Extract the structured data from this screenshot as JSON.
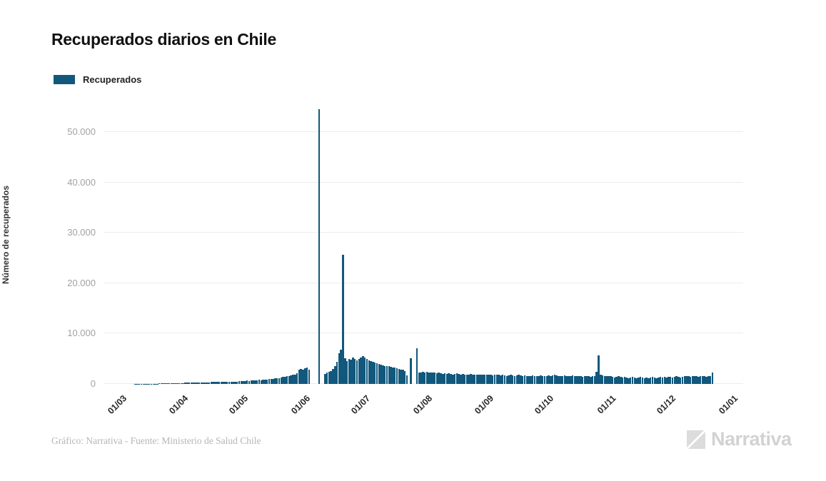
{
  "header": {
    "title": "Recuperados diarios en Chile"
  },
  "legend": {
    "items": [
      {
        "label": "Recuperados",
        "color": "#11587c"
      }
    ]
  },
  "chart_data": {
    "type": "bar",
    "title": "Recuperados diarios en Chile",
    "xlabel": "",
    "ylabel": "Número de recuperados",
    "ylim": [
      0,
      55000
    ],
    "grid": "horizontal-only",
    "bar_color": "#11587c",
    "legend_position": "top-left",
    "start_date": "01/03",
    "end_date": "22/12",
    "x_ticks": [
      {
        "label": "01/03",
        "day": 0
      },
      {
        "label": "01/04",
        "day": 31
      },
      {
        "label": "01/05",
        "day": 61
      },
      {
        "label": "01/06",
        "day": 92
      },
      {
        "label": "01/07",
        "day": 122
      },
      {
        "label": "01/08",
        "day": 153
      },
      {
        "label": "01/09",
        "day": 184
      },
      {
        "label": "01/10",
        "day": 214
      },
      {
        "label": "01/11",
        "day": 245
      },
      {
        "label": "01/12",
        "day": 275
      },
      {
        "label": "01/01",
        "day": 306
      }
    ],
    "y_ticks": [
      {
        "value": 0,
        "label": "0"
      },
      {
        "value": 10000,
        "label": "10.000"
      },
      {
        "value": 20000,
        "label": "20.000"
      },
      {
        "value": 30000,
        "label": "30.000"
      },
      {
        "value": 40000,
        "label": "40.000"
      },
      {
        "value": 50000,
        "label": "50.000"
      }
    ],
    "notable_points": [
      {
        "date": "08/06",
        "value": 54480
      },
      {
        "date": "20/06",
        "value": 25600
      },
      {
        "date": "24/07",
        "value": 5100
      },
      {
        "date": "27/07",
        "value": 7100
      },
      {
        "date": "26/10",
        "value": 5600
      }
    ],
    "series": [
      {
        "name": "Recuperados",
        "values": [
          0,
          0,
          0,
          0,
          5,
          8,
          10,
          12,
          15,
          18,
          20,
          25,
          30,
          35,
          40,
          45,
          50,
          60,
          70,
          80,
          90,
          100,
          110,
          120,
          130,
          140,
          150,
          160,
          170,
          180,
          190,
          210,
          230,
          250,
          240,
          260,
          280,
          270,
          290,
          310,
          300,
          320,
          340,
          330,
          350,
          370,
          360,
          380,
          400,
          390,
          410,
          430,
          420,
          440,
          460,
          450,
          470,
          490,
          480,
          500,
          520,
          560,
          600,
          640,
          620,
          680,
          720,
          700,
          760,
          800,
          780,
          840,
          880,
          900,
          950,
          1000,
          1050,
          1100,
          1200,
          1150,
          1300,
          1400,
          1350,
          1500,
          1600,
          1700,
          1800,
          1900,
          2100,
          2800,
          3000,
          2900,
          3100,
          3200,
          2900,
          0,
          0,
          0,
          0,
          54480,
          0,
          0,
          2000,
          2200,
          2400,
          2600,
          3000,
          3500,
          4400,
          6100,
          6800,
          25600,
          5100,
          4600,
          5000,
          4800,
          5300,
          4900,
          4700,
          5000,
          5200,
          5500,
          5200,
          4900,
          4700,
          4500,
          4400,
          4200,
          4100,
          3900,
          3800,
          3700,
          3600,
          3500,
          3500,
          3400,
          3300,
          3200,
          3100,
          3000,
          2900,
          2800,
          2600,
          1700,
          0,
          5100,
          0,
          0,
          7100,
          2300,
          2200,
          2400,
          2300,
          2400,
          2300,
          2200,
          2300,
          2200,
          2100,
          2200,
          2100,
          2000,
          2100,
          2000,
          2100,
          2000,
          1900,
          2000,
          2100,
          2000,
          1900,
          2000,
          1900,
          1800,
          1900,
          2000,
          1900,
          1800,
          1900,
          1800,
          1900,
          1800,
          1900,
          1800,
          1900,
          1800,
          1700,
          1800,
          1900,
          1800,
          1700,
          1800,
          1700,
          1600,
          1700,
          1800,
          1700,
          1600,
          1700,
          1800,
          1700,
          1600,
          1700,
          1600,
          1500,
          1600,
          1700,
          1600,
          1500,
          1600,
          1700,
          1600,
          1500,
          1600,
          1700,
          1600,
          1700,
          1800,
          1700,
          1600,
          1500,
          1600,
          1700,
          1600,
          1500,
          1600,
          1700,
          1600,
          1500,
          1600,
          1500,
          1400,
          1500,
          1600,
          1500,
          1400,
          1500,
          1600,
          2400,
          5600,
          1800,
          1700,
          1600,
          1500,
          1600,
          1500,
          1400,
          1300,
          1400,
          1500,
          1400,
          1300,
          1400,
          1300,
          1200,
          1300,
          1400,
          1300,
          1200,
          1300,
          1400,
          1300,
          1200,
          1300,
          1200,
          1300,
          1400,
          1300,
          1200,
          1300,
          1400,
          1300,
          1400,
          1300,
          1400,
          1400,
          1300,
          1400,
          1500,
          1400,
          1300,
          1400,
          1500,
          1600,
          1500,
          1400,
          1500,
          1600,
          1500,
          1400,
          1500,
          1600,
          1500,
          1400,
          1500,
          1600,
          2300
        ]
      }
    ]
  },
  "footer": {
    "credit": "Gráfico: Narrativa - Fuente: Ministerio de Salud Chile",
    "logo_text": "Narrativa"
  }
}
